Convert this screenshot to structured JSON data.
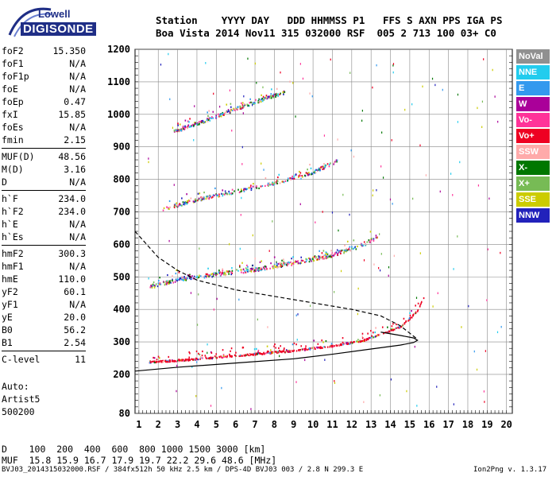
{
  "logo": {
    "line1": "Lowell",
    "line2": "DIGISONDE"
  },
  "header": {
    "line1": "Station    YYYY DAY   DDD HHMMSS P1   FFS S AXN PPS IGA PS",
    "line2": "Boa Vista 2014 Nov11 315 032000 RSF  005 2 713 100 03+ C0"
  },
  "params": {
    "group1": [
      {
        "label": "foF2",
        "value": "15.350"
      },
      {
        "label": "foF1",
        "value": "N/A"
      },
      {
        "label": "foF1p",
        "value": "N/A"
      },
      {
        "label": "foE",
        "value": "N/A"
      },
      {
        "label": "foEp",
        "value": "0.47"
      },
      {
        "label": "fxI",
        "value": "15.85"
      },
      {
        "label": "foEs",
        "value": "N/A"
      },
      {
        "label": "fmin",
        "value": "2.15"
      }
    ],
    "group2": [
      {
        "label": "MUF(D)",
        "value": "48.56"
      },
      {
        "label": "M(D)",
        "value": "3.16"
      },
      {
        "label": "D",
        "value": "N/A"
      }
    ],
    "group3": [
      {
        "label": "h`F",
        "value": "234.0"
      },
      {
        "label": "h`F2",
        "value": "234.0"
      },
      {
        "label": "h`E",
        "value": "N/A"
      },
      {
        "label": "h`Es",
        "value": "N/A"
      }
    ],
    "group4": [
      {
        "label": "hmF2",
        "value": "300.3"
      },
      {
        "label": "hmF1",
        "value": "N/A"
      },
      {
        "label": "hmE",
        "value": "110.0"
      },
      {
        "label": "yF2",
        "value": "60.1"
      },
      {
        "label": "yF1",
        "value": "N/A"
      },
      {
        "label": "yE",
        "value": "20.0"
      },
      {
        "label": "B0",
        "value": "56.2"
      },
      {
        "label": "B1",
        "value": "2.54"
      }
    ],
    "group5": [
      {
        "label": "C-level",
        "value": "11"
      }
    ]
  },
  "auto": {
    "line1": "Auto:",
    "line2": "Artist5",
    "line3": "500200"
  },
  "legend": [
    {
      "label": "NoVal",
      "color": "#909090"
    },
    {
      "label": "NNE",
      "color": "#22ccee"
    },
    {
      "label": "E",
      "color": "#3399ee"
    },
    {
      "label": "W",
      "color": "#aa0099"
    },
    {
      "label": "Vo-",
      "color": "#ff3399"
    },
    {
      "label": "Vo+",
      "color": "#ee0022"
    },
    {
      "label": "SSW",
      "color": "#ffaaaa"
    },
    {
      "label": "X-",
      "color": "#007700"
    },
    {
      "label": "X+",
      "color": "#77bb55"
    },
    {
      "label": "SSE",
      "color": "#cccc00"
    },
    {
      "label": "NNW",
      "color": "#2222bb"
    }
  ],
  "footer": {
    "line1": "D    100  200  400  600  800 1000 1500 3000 [km]",
    "line2": "MUF  15.8 15.9 16.7 17.9 19.7 22.2 29.6 48.6 [MHz]",
    "line3": "BVJ03_2014315032000.RSF / 384fx512h 50 kHz 2.5 km / DPS-4D BVJ03 003 / 2.8 N 299.3 E",
    "version": "Ion2Png v. 1.3.17"
  },
  "chart_data": {
    "type": "scatter",
    "x_ticks": [
      1,
      2,
      3,
      4,
      5,
      6,
      7,
      8,
      9,
      10,
      11,
      12,
      13,
      14,
      15,
      16,
      17,
      18,
      19,
      20
    ],
    "y_ticks": [
      80,
      200,
      300,
      400,
      500,
      600,
      700,
      800,
      900,
      1000,
      1100,
      1200
    ],
    "xlim": [
      0.8,
      20.3
    ],
    "ylim": [
      80,
      1200
    ],
    "grid": true,
    "traces": [
      {
        "name": "F2 trace",
        "x": [
          1.5,
          3,
          5,
          7,
          9,
          11,
          12.5,
          13.5,
          14.5,
          15,
          15.4,
          15.7
        ],
        "y": [
          240,
          245,
          255,
          265,
          275,
          290,
          305,
          325,
          350,
          375,
          400,
          440
        ]
      },
      {
        "name": "2F2 trace",
        "x": [
          1.5,
          3,
          5,
          7,
          9,
          11,
          12.5,
          13.3
        ],
        "y": [
          470,
          495,
          510,
          525,
          545,
          570,
          600,
          625
        ]
      },
      {
        "name": "3F2 trace",
        "x": [
          2.2,
          4,
          6,
          8,
          10,
          11.3
        ],
        "y": [
          710,
          740,
          765,
          790,
          825,
          860
        ]
      },
      {
        "name": "4F2 trace",
        "x": [
          2.8,
          4.5,
          6.5,
          8.5
        ],
        "y": [
          950,
          985,
          1030,
          1070
        ]
      }
    ],
    "model_curves": [
      {
        "name": "profile-solid",
        "x": [
          0.8,
          3,
          6,
          9,
          11,
          13,
          14.5,
          15.2,
          15.4,
          15.2,
          14.5,
          13.5
        ],
        "y": [
          210,
          222,
          235,
          248,
          262,
          278,
          290,
          298,
          305,
          312,
          320,
          330
        ]
      },
      {
        "name": "profile-dashed",
        "x": [
          0.8,
          2,
          3,
          4,
          6,
          8,
          10,
          12,
          13.5,
          14.5,
          15.4
        ],
        "y": [
          640,
          560,
          520,
          490,
          460,
          440,
          420,
          400,
          380,
          350,
          308
        ]
      }
    ]
  }
}
